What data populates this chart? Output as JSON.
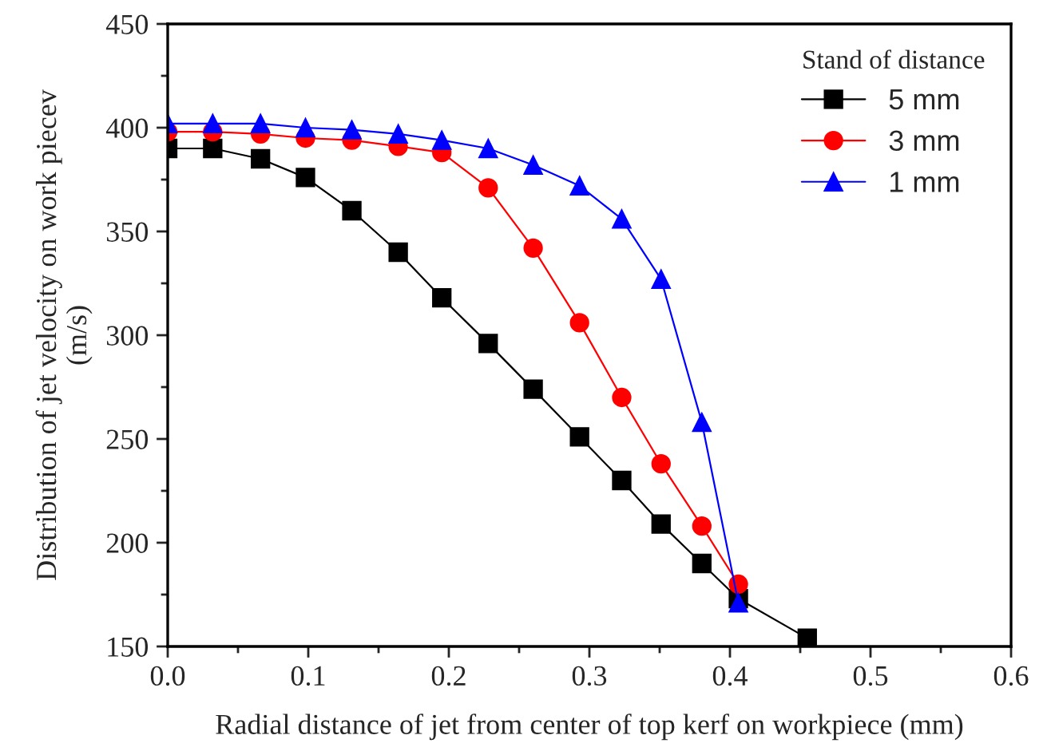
{
  "chart_data": {
    "type": "line",
    "xlabel": "Radial distance of jet from center of top kerf on workpiece (mm)",
    "ylabel": "Distribution of jet velocity on work piecev\n(m/s)",
    "legend_title": "Stand of distance",
    "x": [
      0,
      0.032,
      0.066,
      0.098,
      0.131,
      0.164,
      0.195,
      0.228,
      0.26,
      0.293,
      0.323,
      0.351,
      0.38,
      0.406,
      0.455
    ],
    "series": [
      {
        "name": "5 mm",
        "color": "#000000",
        "marker": "square",
        "values": [
          390,
          390,
          385,
          376,
          360,
          340,
          318,
          296,
          274,
          251,
          230,
          209,
          190,
          173,
          154
        ]
      },
      {
        "name": "3 mm",
        "color": "#ff0000",
        "marker": "circle",
        "values": [
          398,
          398,
          397,
          395,
          394,
          391,
          388,
          371,
          342,
          306,
          270,
          238,
          208,
          180,
          null
        ]
      },
      {
        "name": "1 mm",
        "color": "#0000ff",
        "marker": "triangle",
        "values": [
          402,
          402,
          402,
          400,
          399,
          397,
          394,
          390,
          382,
          372,
          356,
          327,
          258,
          171,
          null
        ]
      }
    ],
    "xlim": [
      0,
      0.6
    ],
    "xticks": [
      {
        "value": 0,
        "label": "0.0"
      },
      0.1,
      0.2,
      0.3,
      0.4,
      0.5,
      0.6
    ],
    "ylim": [
      150,
      450
    ],
    "yticks": [
      150,
      200,
      250,
      300,
      350,
      400,
      450
    ],
    "grid": false,
    "legend": "top right",
    "line_style": "solid"
  }
}
